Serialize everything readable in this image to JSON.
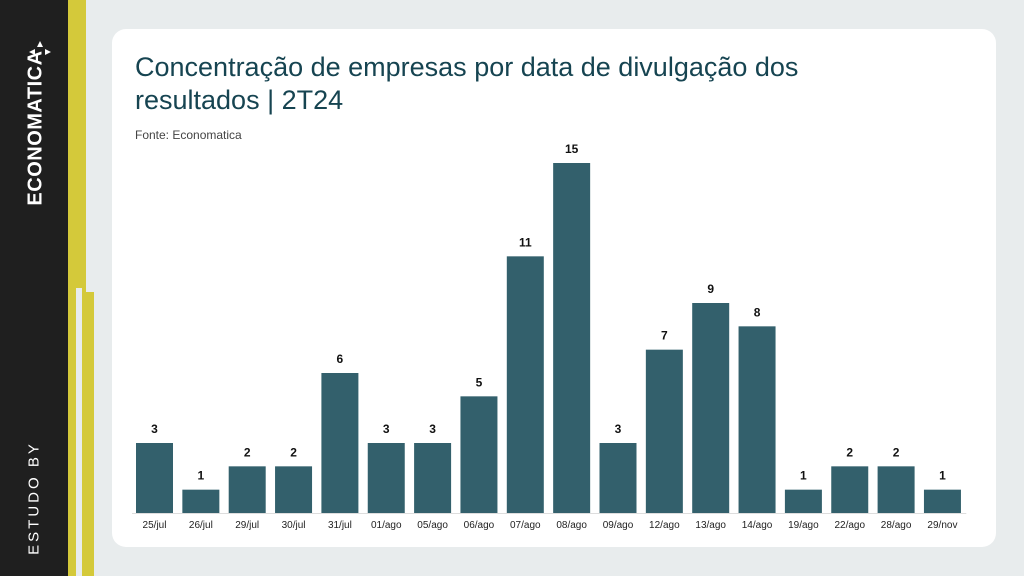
{
  "brand": {
    "name": "ECONOMATICA",
    "study_label": "ESTUDO BY"
  },
  "colors": {
    "bar": "#33606c",
    "title": "#164451",
    "accent": "#d4c93a",
    "sidebar": "#1f1f1f"
  },
  "header": {
    "title": "Concentração de empresas por data de divulgação dos resultados | 2T24",
    "source": "Fonte: Economatica"
  },
  "chart_data": {
    "type": "bar",
    "title": "Concentração de empresas por data de divulgação dos resultados | 2T24",
    "xlabel": "",
    "ylabel": "",
    "ylim": [
      0,
      15
    ],
    "grid": false,
    "categories": [
      "25/jul",
      "26/jul",
      "29/jul",
      "30/jul",
      "31/jul",
      "01/ago",
      "05/ago",
      "06/ago",
      "07/ago",
      "08/ago",
      "09/ago",
      "12/ago",
      "13/ago",
      "14/ago",
      "19/ago",
      "22/ago",
      "28/ago",
      "29/nov"
    ],
    "values": [
      3,
      1,
      2,
      2,
      6,
      3,
      3,
      5,
      11,
      15,
      3,
      7,
      9,
      8,
      1,
      2,
      2,
      1
    ]
  }
}
